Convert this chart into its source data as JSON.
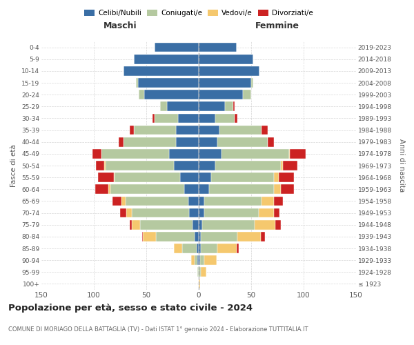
{
  "age_groups": [
    "100+",
    "95-99",
    "90-94",
    "85-89",
    "80-84",
    "75-79",
    "70-74",
    "65-69",
    "60-64",
    "55-59",
    "50-54",
    "45-49",
    "40-44",
    "35-39",
    "30-34",
    "25-29",
    "20-24",
    "15-19",
    "10-14",
    "5-9",
    "0-4"
  ],
  "birth_years": [
    "≤ 1923",
    "1924-1928",
    "1929-1933",
    "1934-1938",
    "1939-1943",
    "1944-1948",
    "1949-1953",
    "1954-1958",
    "1959-1963",
    "1964-1968",
    "1969-1973",
    "1974-1978",
    "1979-1983",
    "1984-1988",
    "1989-1993",
    "1994-1998",
    "1999-2003",
    "2004-2008",
    "2009-2013",
    "2014-2018",
    "2019-2023"
  ],
  "colors": {
    "celibi": "#3A6EA5",
    "coniugati": "#B5C9A0",
    "vedovi": "#F5C86E",
    "divorziati": "#CC2222"
  },
  "maschi": {
    "celibi": [
      0,
      0,
      1,
      2,
      4,
      6,
      9,
      10,
      14,
      18,
      24,
      28,
      22,
      22,
      20,
      30,
      52,
      58,
      72,
      62,
      42
    ],
    "coniugati": [
      0,
      1,
      3,
      14,
      37,
      50,
      55,
      60,
      70,
      62,
      65,
      65,
      50,
      40,
      22,
      7,
      5,
      2,
      0,
      0,
      0
    ],
    "vedovi": [
      0,
      0,
      3,
      8,
      12,
      8,
      5,
      4,
      2,
      1,
      1,
      0,
      0,
      0,
      0,
      0,
      0,
      0,
      0,
      0,
      0
    ],
    "divorziati": [
      0,
      0,
      0,
      0,
      1,
      2,
      6,
      8,
      13,
      15,
      8,
      8,
      4,
      4,
      2,
      0,
      0,
      0,
      0,
      0,
      0
    ]
  },
  "femmine": {
    "celibi": [
      0,
      0,
      1,
      2,
      2,
      3,
      5,
      5,
      10,
      12,
      16,
      22,
      18,
      20,
      16,
      25,
      42,
      50,
      58,
      52,
      36
    ],
    "coniugati": [
      0,
      2,
      4,
      16,
      35,
      50,
      52,
      55,
      62,
      60,
      62,
      64,
      48,
      40,
      18,
      8,
      8,
      2,
      0,
      0,
      0
    ],
    "vedovi": [
      1,
      5,
      12,
      18,
      22,
      20,
      15,
      12,
      6,
      4,
      2,
      1,
      0,
      0,
      0,
      0,
      0,
      0,
      0,
      0,
      0
    ],
    "divorziati": [
      0,
      0,
      0,
      2,
      4,
      5,
      5,
      8,
      13,
      15,
      14,
      15,
      6,
      6,
      3,
      1,
      0,
      0,
      0,
      0,
      0
    ]
  },
  "title": "Popolazione per età, sesso e stato civile - 2024",
  "subtitle": "COMUNE DI MORIAGO DELLA BATTAGLIA (TV) - Dati ISTAT 1° gennaio 2024 - Elaborazione TUTTITALIA.IT",
  "ylabel_left": "Fasce di età",
  "ylabel_right": "Anni di nascita",
  "xlabel_maschi": "Maschi",
  "xlabel_femmine": "Femmine",
  "legend_labels": [
    "Celibi/Nubili",
    "Coniugati/e",
    "Vedovi/e",
    "Divorziati/e"
  ],
  "xlim": 150,
  "background_color": "#ffffff",
  "grid_color": "#cccccc"
}
